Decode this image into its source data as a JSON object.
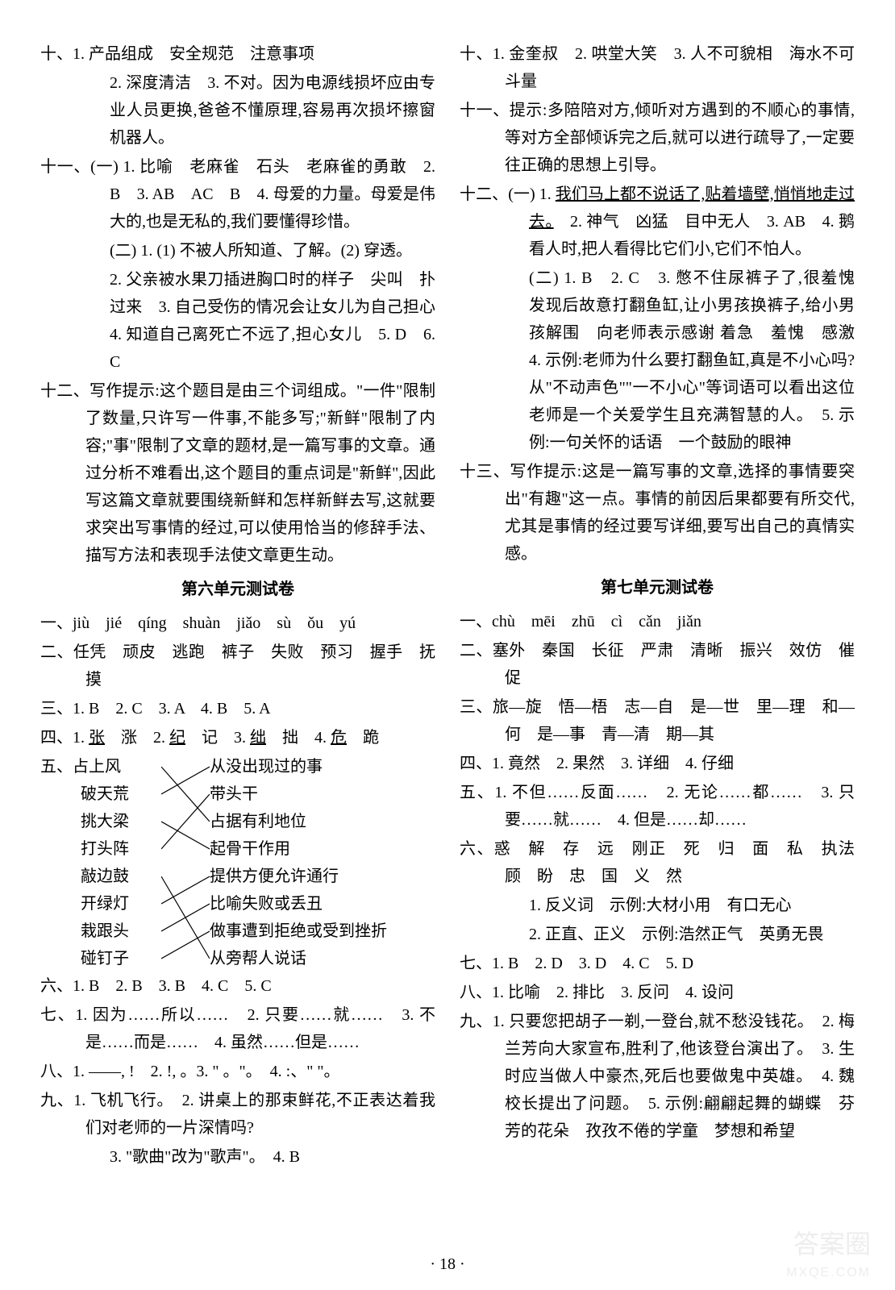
{
  "page": {
    "number": "· 18 ·",
    "watermark": "答案圈",
    "watermark_url": "MXQE.COM",
    "background_color": "#ffffff",
    "text_color": "#000000",
    "font_size": 20
  },
  "left_column": {
    "items": [
      {
        "class": "indent-1",
        "text": "十、1. 产品组成　安全规范　注意事项"
      },
      {
        "class": "indent-0",
        "text": "2. 深度清洁　3. 不对。因为电源线损坏应由专业人员更换,爸爸不懂原理,容易再次损坏擦窗机器人。"
      },
      {
        "class": "indent-2",
        "text": "十一、(一) 1. 比喻　老麻雀　石头　老麻雀的勇敢　2. B　3. AB　AC　B　4. 母爱的力量。母爱是伟大的,也是无私的,我们要懂得珍惜。"
      },
      {
        "class": "indent-0",
        "text": "(二) 1. (1) 不被人所知道、了解。(2) 穿透。"
      },
      {
        "class": "indent-0",
        "text": "2. 父亲被水果刀插进胸口时的样子　尖叫　扑过来　3. 自己受伤的情况会让女儿为自己担心　4. 知道自己离死亡不远了,担心女儿　5. D　6. C"
      },
      {
        "class": "indent-1",
        "text": "十二、写作提示:这个题目是由三个词组成。\"一件\"限制了数量,只许写一件事,不能多写;\"新鲜\"限制了内容;\"事\"限制了文章的题材,是一篇写事的文章。通过分析不难看出,这个题目的重点词是\"新鲜\",因此写这篇文章就要围绕新鲜和怎样新鲜去写,这就要求突出写事情的经过,可以使用恰当的修辞手法、描写方法和表现手法使文章更生动。"
      }
    ],
    "section6": {
      "title": "第六单元测试卷",
      "items": [
        {
          "class": "indent-1",
          "text": "一、jiù　jié　qíng　shuàn　jiǎo　sù　ǒu　yú"
        },
        {
          "class": "indent-1",
          "text": "二、任凭　顽皮　逃跑　裤子　失败　预习　握手　抚摸"
        },
        {
          "class": "indent-1",
          "text": "三、1. B　2. C　3. A　4. B　5. A"
        },
        {
          "class": "indent-1",
          "html": "四、1. <span class=\"underline\">张</span>　涨　2. <span class=\"underline\">纪</span>　记　3. <span class=\"underline\">绌</span>　拙　4. <span class=\"underline\">危</span>　跪"
        }
      ],
      "matching": {
        "label": "五、",
        "left": [
          "占上风",
          "破天荒",
          "挑大梁",
          "打头阵",
          "敲边鼓",
          "开绿灯",
          "栽跟头",
          "碰钉子"
        ],
        "right": [
          "从没出现过的事",
          "带头干",
          "占据有利地位",
          "起骨干作用",
          "提供方便允许通行",
          "比喻失败或丢丑",
          "做事遭到拒绝或受到挫折",
          "从旁帮人说话"
        ],
        "connections": [
          [
            0,
            2
          ],
          [
            1,
            0
          ],
          [
            2,
            3
          ],
          [
            3,
            1
          ],
          [
            4,
            7
          ],
          [
            5,
            4
          ],
          [
            6,
            5
          ],
          [
            7,
            6
          ]
        ],
        "line_color": "#000000"
      },
      "items_after": [
        {
          "class": "indent-1",
          "text": "六、1. B　2. B　3. B　4. C　5. C"
        },
        {
          "class": "indent-1",
          "text": "七、1. 因为……所以……　2. 只要……就……　3. 不是……而是……　4. 虽然……但是……"
        },
        {
          "class": "indent-1",
          "text": "八、1. ——, !　2. !, 。3. \" 。\"。　4. :、\" \"。"
        },
        {
          "class": "indent-1",
          "text": "九、1. 飞机飞行。　2. 讲桌上的那束鲜花,不正表达着我们对老师的一片深情吗?"
        },
        {
          "class": "indent-0",
          "text": "3. \"歌曲\"改为\"歌声\"。　4. B"
        }
      ]
    }
  },
  "right_column": {
    "items": [
      {
        "class": "indent-1",
        "text": "十、1. 金奎叔　2. 哄堂大笑　3. 人不可貌相　海水不可斗量"
      },
      {
        "class": "indent-1",
        "text": "十一、提示:多陪陪对方,倾听对方遇到的不顺心的事情,等对方全部倾诉完之后,就可以进行疏导了,一定要往正确的思想上引导。"
      },
      {
        "class": "indent-2",
        "html": "十二、(一) 1. <span class=\"underline\">我们马上都不说话了,贴着墙壁,悄悄地走过去。</span>　2. 神气　凶猛　目中无人　3. AB　4. 鹅看人时,把人看得比它们小,它们不怕人。"
      },
      {
        "class": "indent-0",
        "text": "(二) 1. B　2. C　3. 憋不住尿裤子了,很羞愧　发现后故意打翻鱼缸,让小男孩换裤子,给小男孩解围　向老师表示感谢 着急　羞愧　感激　4. 示例:老师为什么要打翻鱼缸,真是不小心吗?　从\"不动声色\"\"一不小心\"等词语可以看出这位老师是一个关爱学生且充满智慧的人。　5. 示例:一句关怀的话语　一个鼓励的眼神"
      },
      {
        "class": "indent-1",
        "text": "十三、写作提示:这是一篇写事的文章,选择的事情要突出\"有趣\"这一点。事情的前因后果都要有所交代,尤其是事情的经过要写详细,要写出自己的真情实感。"
      }
    ],
    "section7": {
      "title": "第七单元测试卷",
      "items": [
        {
          "class": "indent-1",
          "text": "一、chù　mēi　zhū　cì　cǎn　jiǎn"
        },
        {
          "class": "indent-1",
          "text": "二、塞外　秦国　长征　严肃　清晰　振兴　效仿　催促"
        },
        {
          "class": "indent-1",
          "text": "三、旅—旋　悟—梧　志—自　是—世　里—理　和—何　是—事　青—清　期—其"
        },
        {
          "class": "indent-1",
          "text": "四、1. 竟然　2. 果然　3. 详细　4. 仔细"
        },
        {
          "class": "indent-1",
          "text": "五、1. 不但……反面……　2. 无论……都……　3. 只要……就……　4. 但是……却……"
        },
        {
          "class": "indent-1",
          "text": "六、惑　解　存　远　刚正　死　归　面　私　执法　顾　盼　忠　国　义　然"
        },
        {
          "class": "indent-0",
          "text": "1. 反义词　示例:大材小用　有口无心"
        },
        {
          "class": "indent-0",
          "text": "2. 正直、正义　示例:浩然正气　英勇无畏"
        },
        {
          "class": "indent-1",
          "text": "七、1. B　2. D　3. D　4. C　5. D"
        },
        {
          "class": "indent-1",
          "text": "八、1. 比喻　2. 排比　3. 反问　4. 设问"
        },
        {
          "class": "indent-1",
          "text": "九、1. 只要您把胡子一剃,一登台,就不愁没钱花。　2. 梅兰芳向大家宣布,胜利了,他该登台演出了。　3. 生时应当做人中豪杰,死后也要做鬼中英雄。　4. 魏校长提出了问题。　5. 示例:翩翩起舞的蝴蝶　芬芳的花朵　孜孜不倦的学童　梦想和希望"
        }
      ]
    }
  }
}
